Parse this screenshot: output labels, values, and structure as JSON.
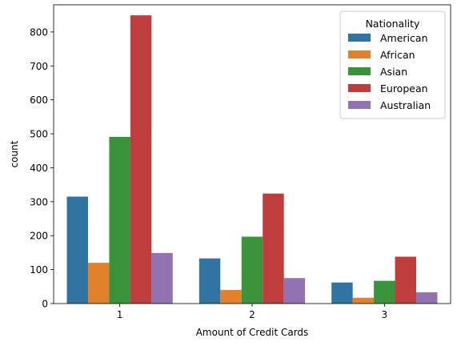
{
  "chart_data": {
    "type": "bar",
    "categories": [
      "1",
      "2",
      "3"
    ],
    "xlabel": "Amount of Credit Cards",
    "ylabel": "count",
    "ylim": [
      0,
      880
    ],
    "yticks": [
      0,
      100,
      200,
      300,
      400,
      500,
      600,
      700,
      800
    ],
    "legend": {
      "title": "Nationality",
      "placement": "top-right"
    },
    "series": [
      {
        "name": "American",
        "color": "#3274a1",
        "values": [
          315,
          133,
          62
        ]
      },
      {
        "name": "African",
        "color": "#e1812c",
        "values": [
          120,
          40,
          17
        ]
      },
      {
        "name": "Asian",
        "color": "#3a923a",
        "values": [
          491,
          197,
          67
        ]
      },
      {
        "name": "European",
        "color": "#c03d3e",
        "values": [
          849,
          324,
          138
        ]
      },
      {
        "name": "Australian",
        "color": "#9372b2",
        "values": [
          149,
          75,
          33
        ]
      }
    ]
  }
}
